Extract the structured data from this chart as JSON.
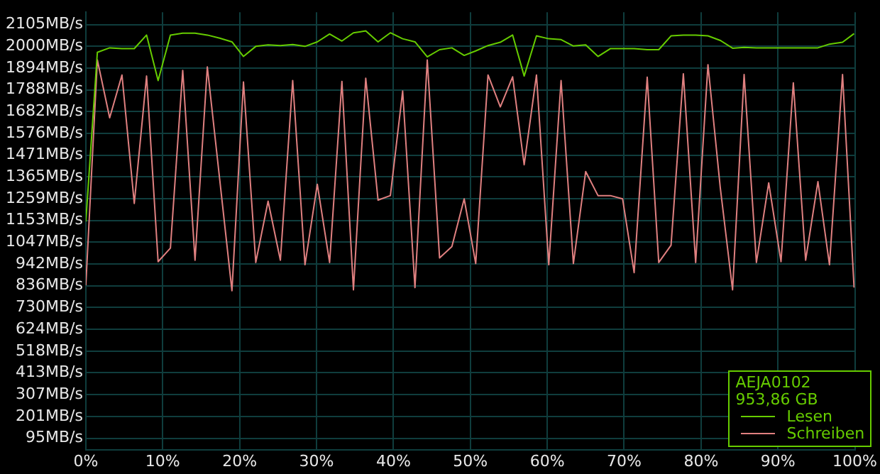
{
  "chart_data": {
    "type": "line",
    "xlim": [
      0,
      100
    ],
    "xticks": [
      {
        "value": 0,
        "label": "0%"
      },
      {
        "value": 10,
        "label": "10%"
      },
      {
        "value": 20,
        "label": "20%"
      },
      {
        "value": 30,
        "label": "30%"
      },
      {
        "value": 40,
        "label": "40%"
      },
      {
        "value": 50,
        "label": "50%"
      },
      {
        "value": 60,
        "label": "60%"
      },
      {
        "value": 70,
        "label": "70%"
      },
      {
        "value": 80,
        "label": "80%"
      },
      {
        "value": 90,
        "label": "90%"
      },
      {
        "value": 100,
        "label": "100%"
      }
    ],
    "ylim": [
      40,
      2165
    ],
    "yticks": [
      {
        "value": 95,
        "label": "95MB/s"
      },
      {
        "value": 201,
        "label": "201MB/s"
      },
      {
        "value": 307,
        "label": "307MB/s"
      },
      {
        "value": 413,
        "label": "413MB/s"
      },
      {
        "value": 518,
        "label": "518MB/s"
      },
      {
        "value": 624,
        "label": "624MB/s"
      },
      {
        "value": 730,
        "label": "730MB/s"
      },
      {
        "value": 836,
        "label": "836MB/s"
      },
      {
        "value": 942,
        "label": "942MB/s"
      },
      {
        "value": 1047,
        "label": "1047MB/s"
      },
      {
        "value": 1153,
        "label": "1153MB/s"
      },
      {
        "value": 1259,
        "label": "1259MB/s"
      },
      {
        "value": 1365,
        "label": "1365MB/s"
      },
      {
        "value": 1471,
        "label": "1471MB/s"
      },
      {
        "value": 1576,
        "label": "1576MB/s"
      },
      {
        "value": 1682,
        "label": "1682MB/s"
      },
      {
        "value": 1788,
        "label": "1788MB/s"
      },
      {
        "value": 1894,
        "label": "1894MB/s"
      },
      {
        "value": 2000,
        "label": "2000MB/s"
      },
      {
        "value": 2105,
        "label": "2105MB/s"
      }
    ],
    "grid": true,
    "legend": "bottom right",
    "marker": "none",
    "line_style": "solid",
    "annotations": [
      "AEJA0102",
      "953,86 GB"
    ],
    "series": [
      {
        "name": "Lesen",
        "color": "#66cc00",
        "x": [
          0,
          1.5,
          3.1,
          4.7,
          6.3,
          7.9,
          9.4,
          11.0,
          12.6,
          14.2,
          15.8,
          17.4,
          19.0,
          20.5,
          22.1,
          23.7,
          25.3,
          26.9,
          28.5,
          30.1,
          31.7,
          33.3,
          34.8,
          36.4,
          38.0,
          39.6,
          41.2,
          42.8,
          44.4,
          46.0,
          47.6,
          49.2,
          50.7,
          52.3,
          53.9,
          55.5,
          57.0,
          58.6,
          60.2,
          61.8,
          63.4,
          65.0,
          66.6,
          68.2,
          69.8,
          71.3,
          73.0,
          74.5,
          76.1,
          77.7,
          79.3,
          80.9,
          82.5,
          84.1,
          85.6,
          87.2,
          88.8,
          90.4,
          92.0,
          93.6,
          95.2,
          96.7,
          98.4,
          99.9
        ],
        "values": [
          1148,
          1970,
          1992,
          1988,
          1988,
          2054,
          1833,
          2054,
          2063,
          2063,
          2054,
          2039,
          2021,
          1950,
          1999,
          2006,
          2003,
          2008,
          1999,
          2021,
          2059,
          2025,
          2065,
          2074,
          2021,
          2065,
          2036,
          2021,
          1948,
          1983,
          1992,
          1955,
          1977,
          2003,
          2019,
          2054,
          1855,
          2050,
          2036,
          2032,
          2001,
          2006,
          1950,
          1988,
          1988,
          1988,
          1983,
          1983,
          2050,
          2054,
          2054,
          2050,
          2028,
          1990,
          1994,
          1992,
          1992,
          1992,
          1992,
          1992,
          1992,
          2010,
          2019,
          2061
        ]
      },
      {
        "name": "Schreiben",
        "color": "#e08080",
        "x": [
          0,
          1.5,
          3.1,
          4.7,
          6.3,
          7.9,
          9.4,
          11.0,
          12.6,
          14.2,
          15.8,
          19.0,
          20.5,
          22.1,
          23.7,
          25.3,
          26.9,
          28.5,
          30.1,
          31.7,
          33.3,
          34.8,
          36.4,
          38.0,
          39.6,
          41.2,
          42.8,
          44.4,
          46.0,
          47.6,
          49.2,
          50.7,
          52.3,
          53.9,
          55.5,
          57.0,
          58.6,
          60.2,
          61.8,
          63.4,
          65.0,
          66.6,
          68.2,
          69.8,
          71.3,
          73.0,
          74.5,
          76.1,
          77.7,
          79.3,
          80.9,
          82.5,
          84.1,
          85.6,
          87.2,
          88.8,
          90.4,
          92.0,
          93.6,
          95.2,
          96.7,
          98.4,
          99.9
        ],
        "values": [
          838,
          1933,
          1652,
          1860,
          1236,
          1855,
          953,
          1019,
          1882,
          960,
          1899,
          812,
          1826,
          949,
          1247,
          960,
          1833,
          938,
          1329,
          949,
          1829,
          816,
          1844,
          1252,
          1274,
          1782,
          827,
          1933,
          971,
          1026,
          1258,
          944,
          1860,
          1705,
          1851,
          1424,
          1860,
          938,
          1833,
          944,
          1391,
          1274,
          1274,
          1258,
          900,
          1849,
          949,
          1033,
          1866,
          949,
          1910,
          1313,
          816,
          1862,
          949,
          1336,
          953,
          1822,
          960,
          1342,
          938,
          1862,
          827
        ]
      }
    ]
  }
}
